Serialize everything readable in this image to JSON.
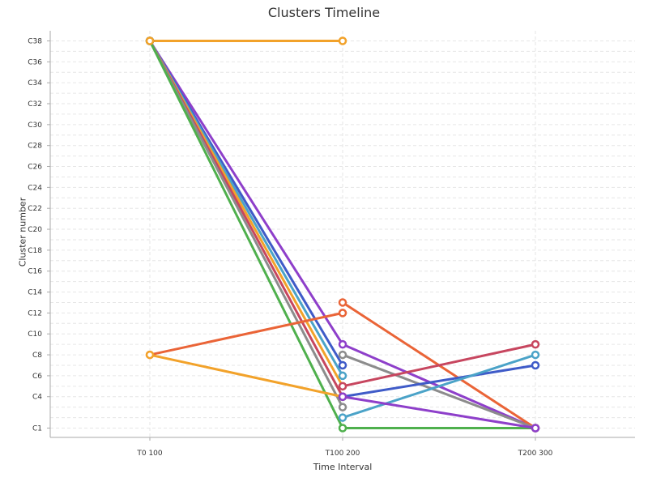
{
  "chart_data": {
    "type": "line",
    "title": "Clusters Timeline",
    "xlabel": "Time Interval",
    "ylabel": "Cluster number",
    "categories": [
      "T0 100",
      "T100 200",
      "T200 300"
    ],
    "y_tick_labels": [
      "C1",
      "C4",
      "C6",
      "C8",
      "C10",
      "C12",
      "C14",
      "C16",
      "C18",
      "C20",
      "C22",
      "C24",
      "C26",
      "C28",
      "C30",
      "C32",
      "C34",
      "C36",
      "C38"
    ],
    "ylim": [
      0,
      39
    ],
    "grid": true,
    "series": [
      {
        "color": "#8e3fca",
        "values": [
          38,
          9,
          1
        ]
      },
      {
        "color": "#3f5bc8",
        "values": [
          38,
          7,
          null
        ]
      },
      {
        "color": "#4ba3c8",
        "values": [
          38,
          6,
          null
        ]
      },
      {
        "color": "#f2a22a",
        "values": [
          38,
          5,
          null
        ]
      },
      {
        "color": "#c7465f",
        "values": [
          38,
          4,
          null
        ]
      },
      {
        "color": "#8c8c8c",
        "values": [
          38,
          3,
          null
        ]
      },
      {
        "color": "#4fb04d",
        "values": [
          38,
          1,
          1
        ]
      },
      {
        "color": "#ea6437",
        "values": [
          8,
          12,
          null
        ]
      },
      {
        "color": "#f2a22a",
        "values": [
          8,
          4,
          null
        ]
      },
      {
        "color": "#ea6437",
        "values": [
          null,
          13,
          1
        ]
      },
      {
        "color": "#8c8c8c",
        "values": [
          null,
          8,
          1
        ]
      },
      {
        "color": "#c7465f",
        "values": [
          null,
          5,
          9
        ]
      },
      {
        "color": "#3f5bc8",
        "values": [
          null,
          4,
          7
        ]
      },
      {
        "color": "#4ba3c8",
        "values": [
          null,
          2,
          8
        ]
      },
      {
        "color": "#8e3fca",
        "values": [
          null,
          4,
          1
        ]
      },
      {
        "color": "#f2a22a",
        "values": [
          38,
          38,
          null
        ]
      }
    ]
  }
}
